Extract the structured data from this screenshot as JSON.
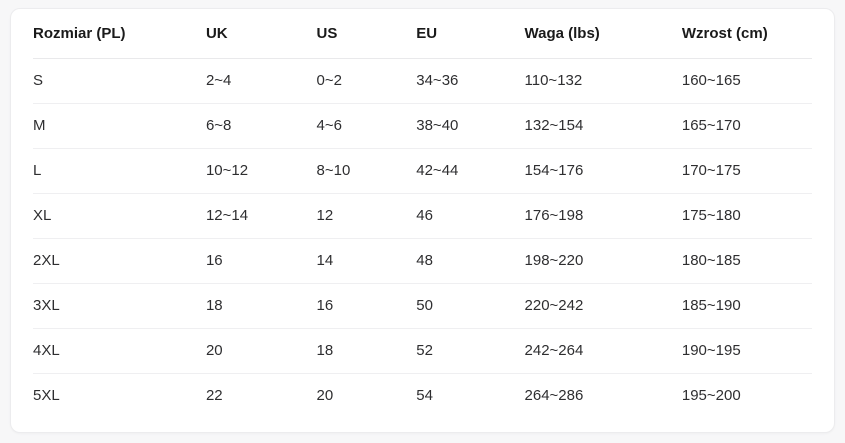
{
  "page": {
    "background_color": "#f7f7f8",
    "card_background_color": "#ffffff",
    "card_border_color": "#ececee",
    "divider_color": "#efeff1",
    "header_text_color": "#1a1a1a",
    "body_text_color": "#2e2e30"
  },
  "table": {
    "columns": [
      "Rozmiar (PL)",
      "UK",
      "US",
      "EU",
      "Waga (lbs)",
      "Wzrost (cm)"
    ],
    "rows": [
      [
        "S",
        "2~4",
        "0~2",
        "34~36",
        "110~132",
        "160~165"
      ],
      [
        "M",
        "6~8",
        "4~6",
        "38~40",
        "132~154",
        "165~170"
      ],
      [
        "L",
        "10~12",
        "8~10",
        "42~44",
        "154~176",
        "170~175"
      ],
      [
        "XL",
        "12~14",
        "12",
        "46",
        "176~198",
        "175~180"
      ],
      [
        "2XL",
        "16",
        "14",
        "48",
        "198~220",
        "180~185"
      ],
      [
        "3XL",
        "18",
        "16",
        "50",
        "220~242",
        "185~190"
      ],
      [
        "4XL",
        "20",
        "18",
        "52",
        "242~264",
        "190~195"
      ],
      [
        "5XL",
        "22",
        "20",
        "54",
        "264~286",
        "195~200"
      ]
    ]
  }
}
